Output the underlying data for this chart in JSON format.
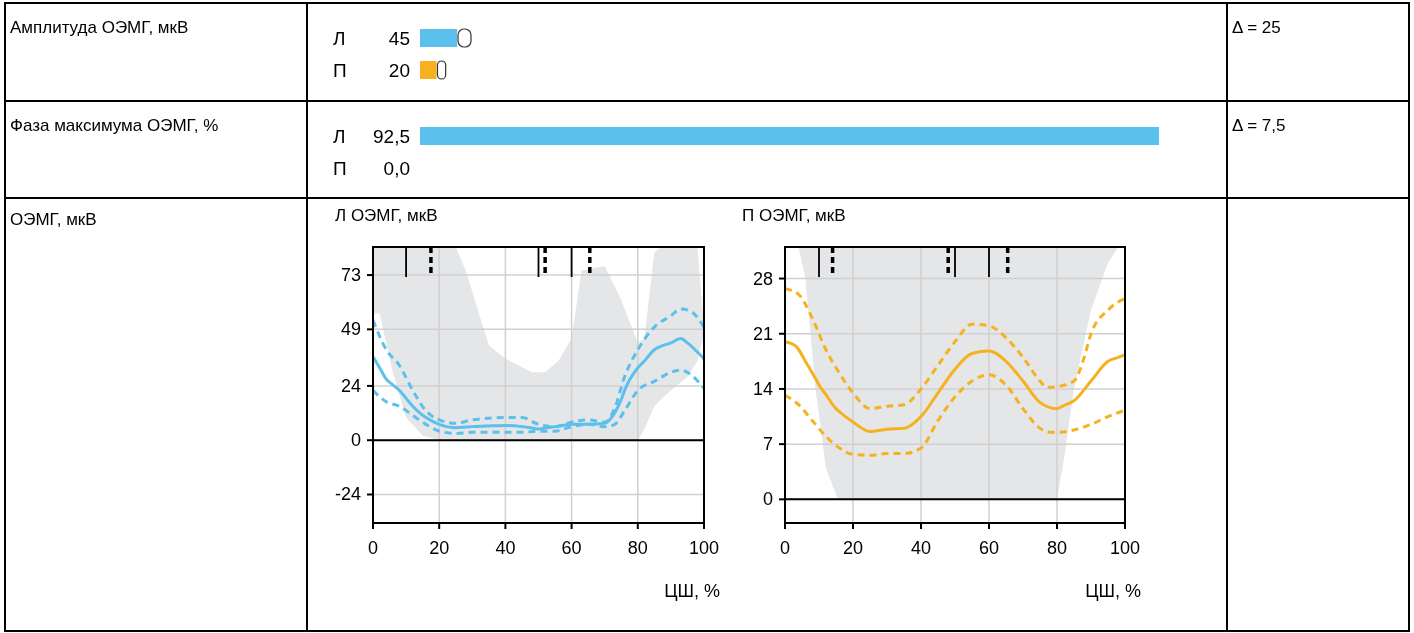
{
  "chart_data": [
    {
      "type": "bar",
      "orientation": "horizontal",
      "ylabel": "Амплитуда ОЭМГ, мкВ",
      "categories": [
        "Л",
        "П"
      ],
      "values": [
        45,
        20
      ],
      "colors": [
        "#5bc0eb",
        "#f5b21e"
      ],
      "data_labels": true,
      "annotations": [
        "Δ = 25"
      ]
    },
    {
      "type": "bar",
      "orientation": "horizontal",
      "ylabel": "Фаза максимума ОЭМГ, %",
      "categories": [
        "Л",
        "П"
      ],
      "values": [
        92.5,
        0.0
      ],
      "colors": [
        "#5bc0eb",
        "#f5b21e"
      ],
      "value_labels": [
        "92,5",
        "0,0"
      ],
      "annotations": [
        "Δ = 7,5"
      ]
    },
    {
      "type": "line",
      "title": "Л ОЭМГ, мкВ",
      "xlabel": "ЦШ, %",
      "annotations": [
        "ОЭМГ, мкВ"
      ],
      "xlim": [
        0,
        100
      ],
      "xticks": [
        0,
        20,
        40,
        60,
        80,
        100
      ],
      "ylim": [
        -36.6,
        85.4
      ],
      "yticks": [
        -24,
        0,
        24,
        49,
        73
      ],
      "grid": true,
      "ref_lines": [
        {
          "axis": "y",
          "value": 0,
          "color": "#000000",
          "line_style": "solid"
        },
        {
          "axis": "x",
          "value": 10,
          "color": "#000000",
          "line_style": "solid"
        },
        {
          "axis": "x",
          "value": 17.5,
          "color": "#000000",
          "line_style": "dashed"
        },
        {
          "axis": "x",
          "value": 50,
          "color": "#000000",
          "line_style": "solid"
        },
        {
          "axis": "x",
          "value": 52,
          "color": "#000000",
          "line_style": "dashed"
        },
        {
          "axis": "x",
          "value": 60,
          "color": "#000000",
          "line_style": "solid"
        },
        {
          "axis": "x",
          "value": 65.5,
          "color": "#000000",
          "line_style": "dashed"
        }
      ],
      "series": [
        {
          "type": "line",
          "color": "#5bc0eb",
          "line_style": "solid",
          "x": [
            0,
            2,
            4,
            6,
            8,
            10,
            12,
            15,
            16,
            20,
            25,
            28,
            30,
            35,
            40,
            45,
            48,
            50,
            52,
            55,
            56,
            60,
            63,
            65,
            70,
            73,
            75,
            76,
            80,
            82,
            85,
            87,
            90,
            93,
            95,
            98,
            100
          ],
          "values": [
            37,
            32,
            27,
            24.5,
            22,
            18.5,
            15,
            11,
            10,
            7,
            5.5,
            5.8,
            6,
            6.3,
            6.5,
            6,
            5.4,
            5,
            5.4,
            6,
            6.2,
            7,
            7,
            7,
            7.5,
            12,
            18,
            22,
            32,
            35,
            40,
            41.5,
            43,
            45,
            43,
            39,
            36
          ],
          "lower": [
            56,
            56,
            43,
            30,
            20,
            10,
            6.8,
            2,
            1.6,
            0,
            0,
            0,
            0,
            0,
            0,
            0,
            0,
            0,
            0,
            0,
            0,
            0,
            0,
            0,
            0,
            0,
            0,
            0,
            0,
            5,
            15,
            18,
            22,
            25.6,
            28,
            35,
            47
          ],
          "upper": [
            85.4,
            85.4,
            85.4,
            85.4,
            85.4,
            85.4,
            85.4,
            85.4,
            85.4,
            85.4,
            85.4,
            75,
            65.6,
            42,
            36,
            32.3,
            30,
            30,
            30,
            33.8,
            35,
            45,
            75,
            75.6,
            77,
            68,
            62,
            58.2,
            43,
            45,
            83,
            85.4,
            85.4,
            85.4,
            85.4,
            85.4,
            50
          ]
        },
        {
          "type": "line",
          "color": "#5bc0eb",
          "line_style": "dashed",
          "x": [
            0,
            4,
            8,
            12,
            16,
            20,
            25,
            30,
            40,
            45,
            50,
            55,
            60,
            65,
            70,
            73,
            76,
            80,
            85,
            90,
            93,
            96,
            100
          ],
          "values": [
            53,
            40,
            33,
            22,
            13,
            9,
            7.5,
            9,
            10,
            10,
            7,
            6,
            8,
            9,
            8,
            14,
            28,
            40,
            50,
            55,
            58,
            57,
            50
          ]
        },
        {
          "type": "line",
          "color": "#5bc0eb",
          "line_style": "dashed",
          "x": [
            0,
            4,
            8,
            12,
            16,
            20,
            25,
            30,
            40,
            45,
            50,
            55,
            60,
            65,
            70,
            73,
            76,
            80,
            85,
            90,
            93,
            96,
            100
          ],
          "values": [
            22,
            17,
            15,
            11,
            7,
            4,
            3,
            3.5,
            3.5,
            3.5,
            4,
            4,
            6,
            7,
            6,
            7,
            13,
            22,
            26,
            30,
            31,
            29,
            23
          ]
        }
      ]
    },
    {
      "type": "line",
      "title": "П ОЭМГ, мкВ",
      "xlabel": "ЦШ, %",
      "xlim": [
        0,
        100
      ],
      "xticks": [
        0,
        20,
        40,
        60,
        80,
        100
      ],
      "ylim": [
        -3,
        32
      ],
      "yticks": [
        0,
        7,
        14,
        21,
        28
      ],
      "grid": true,
      "ref_lines": [
        {
          "axis": "y",
          "value": 0,
          "color": "#000000",
          "line_style": "solid"
        },
        {
          "axis": "x",
          "value": 10,
          "color": "#000000",
          "line_style": "solid"
        },
        {
          "axis": "x",
          "value": 14,
          "color": "#000000",
          "line_style": "dashed"
        },
        {
          "axis": "x",
          "value": 48,
          "color": "#000000",
          "line_style": "dashed"
        },
        {
          "axis": "x",
          "value": 50,
          "color": "#000000",
          "line_style": "solid"
        },
        {
          "axis": "x",
          "value": 60,
          "color": "#000000",
          "line_style": "solid"
        },
        {
          "axis": "x",
          "value": 65.5,
          "color": "#000000",
          "line_style": "dashed"
        }
      ],
      "series": [
        {
          "type": "line",
          "color": "#f5b21e",
          "line_style": "solid",
          "x": [
            0,
            3,
            4,
            6,
            9,
            10,
            12,
            15,
            15.5,
            20,
            25,
            30,
            35,
            40,
            45,
            50,
            55,
            60,
            65,
            70,
            75,
            80,
            82,
            85,
            90,
            95,
            98,
            100
          ],
          "values": [
            20,
            19.5,
            19,
            17.5,
            15.3,
            14.5,
            13.3,
            11.5,
            11.3,
            9.8,
            8.6,
            8.9,
            9,
            10.5,
            13.5,
            16.5,
            18.5,
            18.8,
            17.5,
            15,
            12.3,
            11.5,
            11.9,
            12.5,
            15,
            17.5,
            18,
            18.3
          ],
          "lower": [
            null,
            null,
            32,
            28,
            14,
            10.7,
            4,
            0.6,
            0,
            0,
            0,
            0,
            0,
            0,
            0,
            0,
            0,
            0,
            0,
            0,
            0,
            0,
            5,
            14,
            24,
            30,
            32,
            null
          ],
          "upper": [
            null,
            null,
            32,
            32,
            32,
            32,
            32,
            32,
            32,
            32,
            32,
            32,
            32,
            32,
            32,
            32,
            32,
            32,
            32,
            32,
            32,
            32,
            32,
            32,
            32,
            32,
            32,
            null
          ]
        },
        {
          "type": "line",
          "color": "#f5b21e",
          "line_style": "dashed",
          "x": [
            0,
            4,
            8,
            12,
            16,
            20,
            25,
            30,
            35,
            40,
            45,
            50,
            55,
            60,
            65,
            70,
            75,
            77,
            80,
            85,
            88,
            90,
            95,
            100
          ],
          "values": [
            26.7,
            26,
            23,
            19,
            16,
            13.5,
            11.5,
            11.8,
            12,
            14,
            17,
            20,
            22.2,
            22,
            20.5,
            18,
            15,
            14.2,
            14.3,
            15,
            18,
            21,
            24,
            25.5
          ]
        },
        {
          "type": "line",
          "color": "#f5b21e",
          "line_style": "dashed",
          "x": [
            0,
            4,
            8,
            12,
            16,
            20,
            25,
            30,
            35,
            40,
            45,
            50,
            55,
            60,
            65,
            70,
            75,
            78,
            80,
            85,
            90,
            95,
            100
          ],
          "values": [
            13.2,
            12,
            10,
            8,
            6.5,
            5.7,
            5.6,
            5.8,
            5.8,
            6.5,
            10,
            13,
            15,
            15.8,
            14.5,
            11.5,
            9,
            8.5,
            8.5,
            8.8,
            9.5,
            10.5,
            11.3
          ]
        }
      ]
    }
  ]
}
